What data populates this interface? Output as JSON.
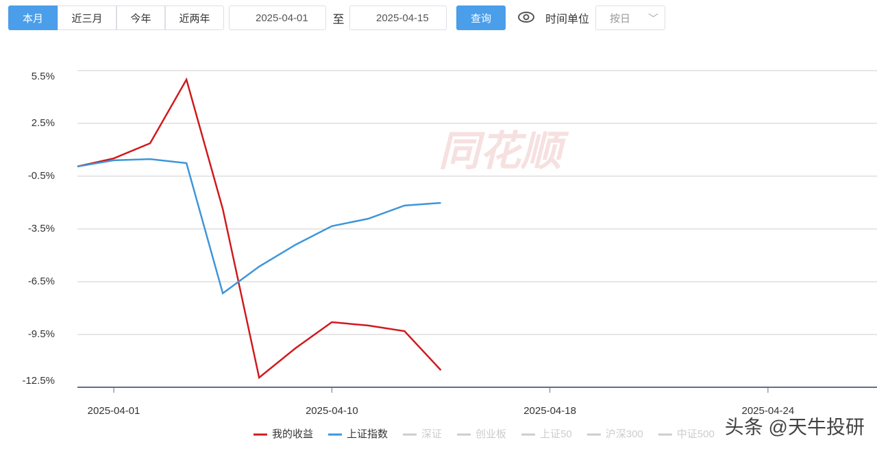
{
  "toolbar": {
    "ranges": [
      "本月",
      "近三月",
      "今年",
      "近两年"
    ],
    "start_date": "2025-04-01",
    "separator": "至",
    "end_date": "2025-04-15",
    "query": "查询",
    "unit_label": "时间单位",
    "unit_select": "按日"
  },
  "watermark": "同花顺",
  "footer_watermark": "头条 @天牛投研",
  "chart_data": {
    "type": "line",
    "categories": [
      null,
      "2025-04-01",
      null,
      null,
      null,
      null,
      null,
      "2025-04-10",
      null,
      null,
      null,
      null,
      null,
      "2025-04-18",
      null,
      null,
      null,
      null,
      null,
      "2025-04-24",
      null,
      null,
      null
    ],
    "series": [
      {
        "name": "我的收益",
        "color": "#d0191d",
        "values": [
          0.05,
          0.51,
          1.37,
          4.99,
          -2.37,
          -11.95,
          -10.28,
          -8.8,
          -8.99,
          -9.31,
          -11.53,
          null,
          null,
          null,
          null,
          null,
          null,
          null,
          null,
          null,
          null,
          null,
          null
        ]
      },
      {
        "name": "上证指数",
        "color": "#3d95d9",
        "values": [
          0.05,
          0.4,
          0.47,
          0.24,
          -7.16,
          -5.64,
          -4.4,
          -3.34,
          -2.92,
          -2.17,
          -2.02,
          null,
          null,
          null,
          null,
          null,
          null,
          null,
          null,
          null,
          null,
          null,
          null
        ]
      }
    ],
    "inactive_legend": [
      "深证",
      "创业板",
      "上证50",
      "沪深300",
      "中证500"
    ],
    "ylim": [
      -12.5,
      5.5
    ],
    "yticks": [
      {
        "value": -12.5,
        "label": "-12.5%"
      },
      {
        "value": -9.5,
        "label": "-9.5%"
      },
      {
        "value": -6.5,
        "label": "-6.5%"
      },
      {
        "value": -3.5,
        "label": "-3.5%"
      },
      {
        "value": -0.5,
        "label": "-0.5%"
      },
      {
        "value": 2.5,
        "label": "2.5%"
      },
      {
        "value": 5.5,
        "label": "5.5%"
      }
    ],
    "grid": true
  }
}
